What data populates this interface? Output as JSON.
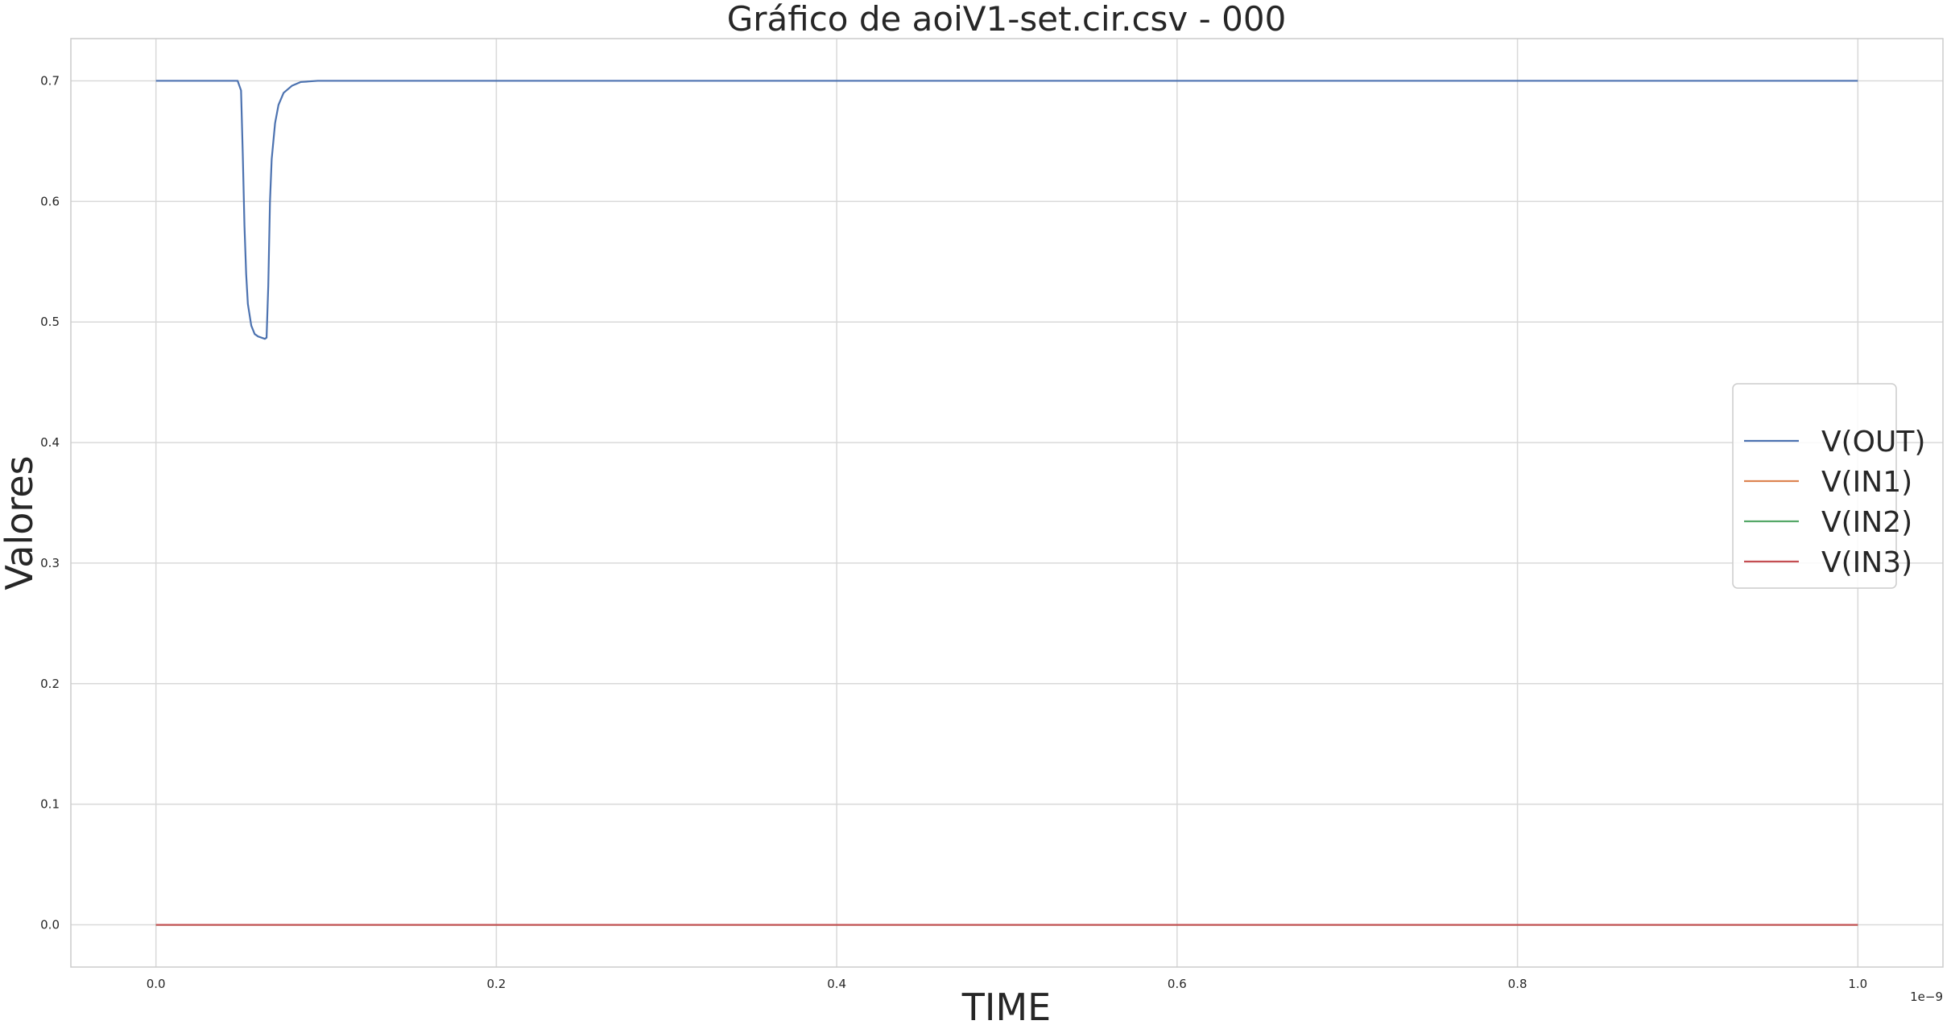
{
  "chart_data": {
    "type": "line",
    "title": "Gráfico de aoiV1-set.cir.csv - 000",
    "xlabel": "TIME",
    "ylabel": "Valores",
    "x_offset_label": "1e−9",
    "xlim": [
      -0.05,
      1.05
    ],
    "ylim": [
      -0.035,
      0.735
    ],
    "xticks": [
      0.0,
      0.2,
      0.4,
      0.6,
      0.8,
      1.0
    ],
    "xtick_labels": [
      "0.0",
      "0.2",
      "0.4",
      "0.6",
      "0.8",
      "1.0"
    ],
    "yticks": [
      0.0,
      0.1,
      0.2,
      0.3,
      0.4,
      0.5,
      0.6,
      0.7
    ],
    "ytick_labels": [
      "0.0",
      "0.1",
      "0.2",
      "0.3",
      "0.4",
      "0.5",
      "0.6",
      "0.7"
    ],
    "grid": true,
    "legend_position": "center-right",
    "series": [
      {
        "name": "V(OUT)",
        "color": "#4c72b0",
        "x": [
          0.0,
          0.02,
          0.04,
          0.048,
          0.05,
          0.051,
          0.052,
          0.053,
          0.054,
          0.056,
          0.058,
          0.06,
          0.062,
          0.064,
          0.065,
          0.066,
          0.067,
          0.068,
          0.07,
          0.072,
          0.075,
          0.08,
          0.085,
          0.09,
          0.095,
          0.1,
          0.15,
          0.2,
          0.4,
          0.6,
          0.8,
          1.0
        ],
        "y": [
          0.7,
          0.7,
          0.7,
          0.7,
          0.692,
          0.64,
          0.58,
          0.54,
          0.515,
          0.497,
          0.49,
          0.488,
          0.487,
          0.486,
          0.487,
          0.53,
          0.6,
          0.635,
          0.665,
          0.68,
          0.69,
          0.696,
          0.699,
          0.6995,
          0.7,
          0.7,
          0.7,
          0.7,
          0.7,
          0.7,
          0.7,
          0.7
        ]
      },
      {
        "name": "V(IN1)",
        "color": "#dd8452",
        "x": [
          0.0,
          1.0
        ],
        "y": [
          0.0,
          0.0
        ]
      },
      {
        "name": "V(IN2)",
        "color": "#55a868",
        "x": [
          0.0,
          1.0
        ],
        "y": [
          0.0,
          0.0
        ]
      },
      {
        "name": "V(IN3)",
        "color": "#c44e52",
        "x": [
          0.0,
          1.0
        ],
        "y": [
          0.0,
          0.0
        ]
      }
    ]
  },
  "style": {
    "grid_color": "#d9d9d9",
    "spine_color": "#cccccc",
    "background": "#ffffff"
  }
}
